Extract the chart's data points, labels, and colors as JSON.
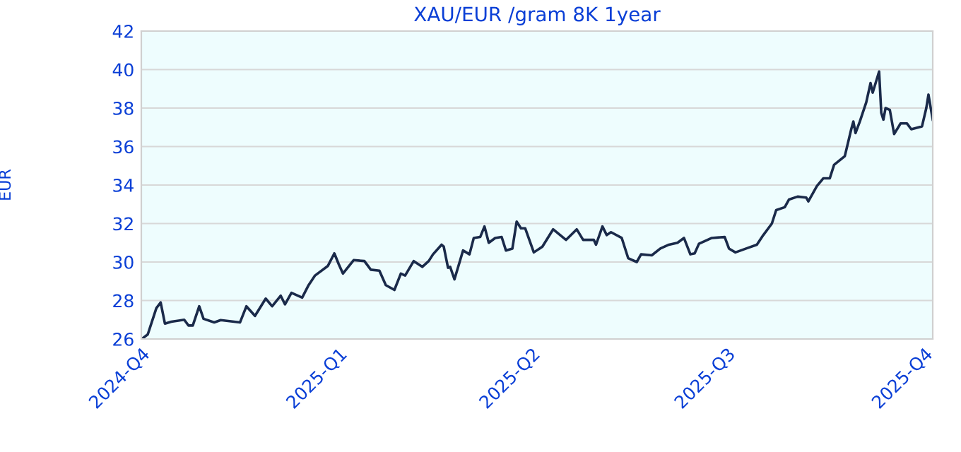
{
  "chart_data": {
    "type": "line",
    "title": "XAU/EUR /gram 8K 1year",
    "ylabel": "EUR",
    "x": [
      "2024-10-02",
      "2024-10-04",
      "2024-10-08",
      "2024-10-10",
      "2024-10-12",
      "2024-10-15",
      "2024-10-21",
      "2024-10-23",
      "2024-10-25",
      "2024-10-28",
      "2024-10-30",
      "2024-11-04",
      "2024-11-07",
      "2024-11-16",
      "2024-11-19",
      "2024-11-23",
      "2024-11-28",
      "2024-12-01",
      "2024-12-05",
      "2024-12-07",
      "2024-12-10",
      "2024-12-15",
      "2024-12-18",
      "2024-12-21",
      "2024-12-27",
      "2024-12-30",
      "2025-01-01",
      "2025-01-03",
      "2025-01-08",
      "2025-01-13",
      "2025-01-16",
      "2025-01-20",
      "2025-01-23",
      "2025-01-27",
      "2025-01-30",
      "2025-02-01",
      "2025-02-05",
      "2025-02-09",
      "2025-02-12",
      "2025-02-14",
      "2025-02-18",
      "2025-02-19",
      "2025-02-21",
      "2025-02-22",
      "2025-02-24",
      "2025-02-28",
      "2025-03-03",
      "2025-03-05",
      "2025-03-08",
      "2025-03-10",
      "2025-03-12",
      "2025-03-15",
      "2025-03-18",
      "2025-03-20",
      "2025-03-23",
      "2025-03-25",
      "2025-03-27",
      "2025-03-29",
      "2025-04-02",
      "2025-04-06",
      "2025-04-11",
      "2025-04-17",
      "2025-04-22",
      "2025-04-25",
      "2025-04-30",
      "2025-05-01",
      "2025-05-04",
      "2025-05-06",
      "2025-05-08",
      "2025-05-13",
      "2025-05-16",
      "2025-05-20",
      "2025-05-22",
      "2025-05-27",
      "2025-05-31",
      "2025-06-04",
      "2025-06-08",
      "2025-06-11",
      "2025-06-14",
      "2025-06-16",
      "2025-06-18",
      "2025-06-24",
      "2025-06-30",
      "2025-07-02",
      "2025-07-05",
      "2025-07-10",
      "2025-07-15",
      "2025-07-18",
      "2025-07-22",
      "2025-07-24",
      "2025-07-28",
      "2025-07-30",
      "2025-08-03",
      "2025-08-07",
      "2025-08-08",
      "2025-08-12",
      "2025-08-15",
      "2025-08-18",
      "2025-08-20",
      "2025-08-25",
      "2025-08-28",
      "2025-08-29",
      "2025-08-30",
      "2025-09-01",
      "2025-09-04",
      "2025-09-06",
      "2025-09-07",
      "2025-09-10",
      "2025-09-11",
      "2025-09-12",
      "2025-09-13",
      "2025-09-15",
      "2025-09-17",
      "2025-09-20",
      "2025-09-23",
      "2025-09-25",
      "2025-09-30",
      "2025-10-02",
      "2025-10-03",
      "2025-10-05"
    ],
    "series": [
      {
        "color": "#1a2a4a",
        "values": [
          26.07,
          26.24,
          27.6,
          27.9,
          26.8,
          26.9,
          27.0,
          26.7,
          26.7,
          27.7,
          27.05,
          26.86,
          26.98,
          26.86,
          27.7,
          27.2,
          28.1,
          27.7,
          28.25,
          27.8,
          28.4,
          28.15,
          28.8,
          29.3,
          29.8,
          30.45,
          29.9,
          29.4,
          30.1,
          30.05,
          29.6,
          29.55,
          28.8,
          28.55,
          29.4,
          29.3,
          30.05,
          29.75,
          30.05,
          30.4,
          30.9,
          30.8,
          29.7,
          29.75,
          29.1,
          30.6,
          30.4,
          31.25,
          31.3,
          31.85,
          31.0,
          31.25,
          31.3,
          30.6,
          30.7,
          32.1,
          31.75,
          31.75,
          30.5,
          30.8,
          31.7,
          31.15,
          31.7,
          31.15,
          31.15,
          30.9,
          31.85,
          31.4,
          31.55,
          31.25,
          30.2,
          30.0,
          30.4,
          30.35,
          30.7,
          30.9,
          31.0,
          31.25,
          30.4,
          30.45,
          30.95,
          31.25,
          31.3,
          30.7,
          30.5,
          30.7,
          30.9,
          31.4,
          32.0,
          32.7,
          32.85,
          33.25,
          33.4,
          33.35,
          33.15,
          33.95,
          34.35,
          34.35,
          35.05,
          35.5,
          36.9,
          37.3,
          36.7,
          37.3,
          38.3,
          39.3,
          38.8,
          39.9,
          37.75,
          37.4,
          38.0,
          37.9,
          36.65,
          37.2,
          37.2,
          36.9,
          37.05,
          38.0,
          38.7,
          37.4
        ]
      }
    ],
    "xlim": [
      "2024-10-01",
      "2025-10-05"
    ],
    "xticks": [
      {
        "value": "2024-10-01",
        "label": "2024-Q4"
      },
      {
        "value": "2025-01-01",
        "label": "2025-Q1"
      },
      {
        "value": "2025-04-01",
        "label": "2025-Q2"
      },
      {
        "value": "2025-07-01",
        "label": "2025-Q3"
      },
      {
        "value": "2025-10-01",
        "label": "2025-Q4"
      }
    ],
    "ylim": [
      26,
      42
    ],
    "yticks": [
      26,
      28,
      30,
      32,
      34,
      36,
      38,
      40,
      42
    ],
    "grid": "y",
    "marker": "none",
    "line_style": "solid"
  }
}
